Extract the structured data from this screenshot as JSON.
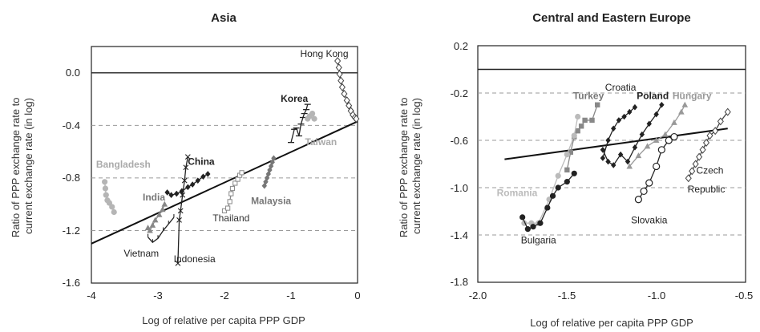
{
  "chart_data": [
    {
      "type": "scatter",
      "title": "Asia",
      "xlabel": "Log of relative per capita PPP GDP",
      "ylabel": "Ratio of PPP exchange rate to current exchange rate (in log)",
      "xlim": [
        -4,
        0
      ],
      "ylim": [
        -1.6,
        0.2
      ],
      "xticks": [
        "-4",
        "-3",
        "-2",
        "-1",
        "0"
      ],
      "yticks": [
        "0.0",
        "-0.4",
        "-0.8",
        "-1.2",
        "-1.6"
      ],
      "grid": "dashed horizontal at -0.4, -0.8, -1.2; solid line at 0.0",
      "trend_line": [
        [
          -4,
          -1.3
        ],
        [
          0,
          -0.37
        ]
      ],
      "series": [
        {
          "name": "Hong Kong",
          "color": "#444444",
          "marker": "open-diamond",
          "points": [
            [
              -0.3,
              0.09
            ],
            [
              -0.28,
              0.04
            ],
            [
              -0.27,
              -0.01
            ],
            [
              -0.25,
              -0.06
            ],
            [
              -0.23,
              -0.11
            ],
            [
              -0.2,
              -0.16
            ],
            [
              -0.16,
              -0.21
            ],
            [
              -0.13,
              -0.25
            ],
            [
              -0.1,
              -0.29
            ],
            [
              -0.07,
              -0.32
            ],
            [
              -0.04,
              -0.34
            ],
            [
              -0.02,
              -0.35
            ]
          ]
        },
        {
          "name": "Korea",
          "color": "#222222",
          "marker": "dash",
          "points": [
            [
              -1.0,
              -0.53
            ],
            [
              -0.95,
              -0.43
            ],
            [
              -0.92,
              -0.42
            ],
            [
              -0.88,
              -0.48
            ],
            [
              -0.85,
              -0.39
            ],
            [
              -0.82,
              -0.34
            ],
            [
              -0.8,
              -0.31
            ],
            [
              -0.77,
              -0.28
            ],
            [
              -0.75,
              -0.24
            ]
          ]
        },
        {
          "name": "Taiwan",
          "color": "#b5b5b5",
          "marker": "circle",
          "points": [
            [
              -0.75,
              -0.35
            ],
            [
              -0.72,
              -0.33
            ],
            [
              -0.68,
              -0.31
            ],
            [
              -0.65,
              -0.35
            ]
          ]
        },
        {
          "name": "Malaysia",
          "color": "#777777",
          "marker": "diamond",
          "points": [
            [
              -1.4,
              -0.86
            ],
            [
              -1.38,
              -0.83
            ],
            [
              -1.36,
              -0.8
            ],
            [
              -1.34,
              -0.77
            ],
            [
              -1.32,
              -0.74
            ],
            [
              -1.3,
              -0.71
            ],
            [
              -1.28,
              -0.68
            ],
            [
              -1.26,
              -0.65
            ]
          ]
        },
        {
          "name": "Thailand",
          "color": "#888888",
          "marker": "open-square",
          "points": [
            [
              -2.0,
              -1.05
            ],
            [
              -1.95,
              -1.03
            ],
            [
              -1.92,
              -0.98
            ],
            [
              -1.9,
              -0.92
            ],
            [
              -1.88,
              -0.88
            ],
            [
              -1.84,
              -0.84
            ],
            [
              -1.8,
              -0.81
            ],
            [
              -1.77,
              -0.78
            ],
            [
              -1.74,
              -0.76
            ]
          ]
        },
        {
          "name": "China",
          "color": "#222222",
          "marker": "diamond",
          "points": [
            [
              -2.86,
              -0.91
            ],
            [
              -2.8,
              -0.93
            ],
            [
              -2.72,
              -0.92
            ],
            [
              -2.64,
              -0.9
            ],
            [
              -2.55,
              -0.87
            ],
            [
              -2.48,
              -0.85
            ],
            [
              -2.4,
              -0.82
            ],
            [
              -2.32,
              -0.79
            ],
            [
              -2.25,
              -0.77
            ]
          ]
        },
        {
          "name": "Indonesia",
          "color": "#222222",
          "marker": "cross",
          "points": [
            [
              -2.55,
              -0.64
            ],
            [
              -2.58,
              -0.72
            ],
            [
              -2.6,
              -0.82
            ],
            [
              -2.63,
              -0.93
            ],
            [
              -2.66,
              -1.05
            ],
            [
              -2.68,
              -1.12
            ],
            [
              -2.7,
              -1.45
            ]
          ]
        },
        {
          "name": "India",
          "color": "#888888",
          "marker": "triangle",
          "points": [
            [
              -3.15,
              -1.18
            ],
            [
              -3.12,
              -1.2
            ],
            [
              -3.08,
              -1.16
            ],
            [
              -3.04,
              -1.12
            ],
            [
              -2.98,
              -1.08
            ],
            [
              -2.93,
              -1.04
            ],
            [
              -2.9,
              -1.0
            ]
          ]
        },
        {
          "name": "Vietnam",
          "color": "#222222",
          "marker": "tick",
          "points": [
            [
              -3.15,
              -1.25
            ],
            [
              -3.08,
              -1.29
            ],
            [
              -3.0,
              -1.26
            ],
            [
              -2.92,
              -1.2
            ],
            [
              -2.84,
              -1.15
            ],
            [
              -2.76,
              -1.1
            ]
          ]
        },
        {
          "name": "Bangladesh",
          "color": "#b5b5b5",
          "marker": "circle",
          "points": [
            [
              -3.8,
              -0.83
            ],
            [
              -3.79,
              -0.88
            ],
            [
              -3.78,
              -0.93
            ],
            [
              -3.76,
              -0.97
            ],
            [
              -3.73,
              -0.99
            ],
            [
              -3.69,
              -1.02
            ],
            [
              -3.66,
              -1.06
            ]
          ]
        }
      ]
    },
    {
      "type": "scatter",
      "title": "Central and Eastern Europe",
      "xlabel": "Log of relative per capita PPP GDP",
      "ylabel": "Ratio of PPP exchange rate to current exchange rate (in log)",
      "xlim": [
        -2.0,
        -0.5
      ],
      "ylim": [
        -1.8,
        0.2
      ],
      "xticks": [
        "-2.0",
        "-1.5",
        "-1.0",
        "-0.5"
      ],
      "yticks": [
        "0.2",
        "-0.2",
        "-0.6",
        "-1.0",
        "-1.4",
        "-1.8"
      ],
      "grid": "dashed horizontal at -0.2, -0.6, -1.0, -1.4; solid line at 0.0",
      "trend_line": [
        [
          -1.85,
          -0.76
        ],
        [
          -0.6,
          -0.5
        ]
      ],
      "series": [
        {
          "name": "Croatia",
          "color": "#222222",
          "marker": "diamond",
          "points": [
            [
              -1.3,
              -0.75
            ],
            [
              -1.27,
              -0.6
            ],
            [
              -1.24,
              -0.5
            ],
            [
              -1.21,
              -0.43
            ],
            [
              -1.18,
              -0.4
            ],
            [
              -1.15,
              -0.36
            ],
            [
              -1.12,
              -0.32
            ]
          ]
        },
        {
          "name": "Poland",
          "color": "#222222",
          "marker": "diamond",
          "points": [
            [
              -1.3,
              -0.68
            ],
            [
              -1.27,
              -0.78
            ],
            [
              -1.24,
              -0.81
            ],
            [
              -1.2,
              -0.72
            ],
            [
              -1.16,
              -0.78
            ],
            [
              -1.12,
              -0.66
            ],
            [
              -1.08,
              -0.55
            ],
            [
              -1.04,
              -0.46
            ],
            [
              -1.0,
              -0.38
            ],
            [
              -0.97,
              -0.3
            ]
          ]
        },
        {
          "name": "Hungary",
          "color": "#999999",
          "marker": "triangle",
          "points": [
            [
              -1.15,
              -0.82
            ],
            [
              -1.1,
              -0.73
            ],
            [
              -1.05,
              -0.65
            ],
            [
              -1.0,
              -0.6
            ],
            [
              -0.95,
              -0.55
            ],
            [
              -0.9,
              -0.45
            ],
            [
              -0.86,
              -0.36
            ],
            [
              -0.84,
              -0.3
            ]
          ]
        },
        {
          "name": "Turkey",
          "color": "#888888",
          "marker": "square",
          "points": [
            [
              -1.5,
              -0.85
            ],
            [
              -1.48,
              -0.7
            ],
            [
              -1.46,
              -0.57
            ],
            [
              -1.44,
              -0.52
            ],
            [
              -1.42,
              -0.48
            ],
            [
              -1.4,
              -0.43
            ],
            [
              -1.36,
              -0.43
            ],
            [
              -1.33,
              -0.3
            ]
          ]
        },
        {
          "name": "Romania",
          "color": "#bbbbbb",
          "marker": "circle",
          "points": [
            [
              -1.74,
              -1.3
            ],
            [
              -1.7,
              -1.3
            ],
            [
              -1.66,
              -1.3
            ],
            [
              -1.6,
              -1.1
            ],
            [
              -1.55,
              -0.9
            ],
            [
              -1.5,
              -0.72
            ],
            [
              -1.46,
              -0.56
            ],
            [
              -1.44,
              -0.4
            ]
          ]
        },
        {
          "name": "Bulgaria",
          "color": "#222222",
          "marker": "circle",
          "points": [
            [
              -1.75,
              -1.25
            ],
            [
              -1.72,
              -1.35
            ],
            [
              -1.69,
              -1.33
            ],
            [
              -1.65,
              -1.3
            ],
            [
              -1.61,
              -1.17
            ],
            [
              -1.58,
              -1.07
            ],
            [
              -1.55,
              -1.0
            ],
            [
              -1.5,
              -0.95
            ],
            [
              -1.46,
              -0.88
            ]
          ]
        },
        {
          "name": "Slovakia",
          "color": "#222222",
          "marker": "open-circle",
          "points": [
            [
              -1.1,
              -1.1
            ],
            [
              -1.07,
              -1.03
            ],
            [
              -1.04,
              -0.96
            ],
            [
              -1.0,
              -0.82
            ],
            [
              -0.97,
              -0.68
            ],
            [
              -0.93,
              -0.6
            ],
            [
              -0.9,
              -0.57
            ]
          ]
        },
        {
          "name": "Czech Republic",
          "color": "#444444",
          "marker": "open-diamond",
          "points": [
            [
              -0.82,
              -0.92
            ],
            [
              -0.8,
              -0.86
            ],
            [
              -0.78,
              -0.8
            ],
            [
              -0.76,
              -0.74
            ],
            [
              -0.74,
              -0.68
            ],
            [
              -0.72,
              -0.62
            ],
            [
              -0.7,
              -0.56
            ],
            [
              -0.67,
              -0.52
            ],
            [
              -0.64,
              -0.44
            ],
            [
              -0.6,
              -0.36
            ]
          ]
        }
      ]
    }
  ],
  "labels": {
    "asia": [
      {
        "text": "Hong Kong",
        "x": -0.5,
        "y": 0.12,
        "color": "#222222",
        "bold": false
      },
      {
        "text": "Korea",
        "x": -0.95,
        "y": -0.22,
        "color": "#222222",
        "bold": true
      },
      {
        "text": "Taiwan",
        "x": -0.55,
        "y": -0.55,
        "color": "#aaaaaa",
        "bold": true
      },
      {
        "text": "Malaysia",
        "x": -1.3,
        "y": -1.0,
        "color": "#777777",
        "bold": true
      },
      {
        "text": "Thailand",
        "x": -1.9,
        "y": -1.13,
        "color": "#333333",
        "bold": false
      },
      {
        "text": "China",
        "x": -2.35,
        "y": -0.7,
        "color": "#222222",
        "bold": true
      },
      {
        "text": "Bangladesh",
        "x": -3.52,
        "y": -0.72,
        "color": "#aaaaaa",
        "bold": true
      },
      {
        "text": "India",
        "x": -3.06,
        "y": -0.97,
        "color": "#777777",
        "bold": true
      },
      {
        "text": "Vietnam",
        "x": -3.25,
        "y": -1.4,
        "color": "#222222",
        "bold": false
      },
      {
        "text": "Indonesia",
        "x": -2.45,
        "y": -1.44,
        "color": "#222222",
        "bold": false
      }
    ],
    "cee": [
      {
        "text": "Croatia",
        "x": -1.2,
        "y": -0.18,
        "color": "#222222",
        "bold": false
      },
      {
        "text": "Poland",
        "x": -1.02,
        "y": -0.25,
        "color": "#222222",
        "bold": true
      },
      {
        "text": "Hungary",
        "x": -0.8,
        "y": -0.25,
        "color": "#999999",
        "bold": true
      },
      {
        "text": "Turkey",
        "x": -1.38,
        "y": -0.25,
        "color": "#777777",
        "bold": true
      },
      {
        "text": "Romania",
        "x": -1.78,
        "y": -1.07,
        "color": "#bbbbbb",
        "bold": true
      },
      {
        "text": "Bulgaria",
        "x": -1.66,
        "y": -1.47,
        "color": "#222222",
        "bold": false
      },
      {
        "text": "Slovakia",
        "x": -1.04,
        "y": -1.3,
        "color": "#222222",
        "bold": false
      },
      {
        "text": "Czech",
        "x": -0.7,
        "y": -0.88,
        "color": "#222222",
        "bold": false
      },
      {
        "text": "Republic",
        "x": -0.72,
        "y": -1.04,
        "color": "#222222",
        "bold": false
      }
    ]
  }
}
